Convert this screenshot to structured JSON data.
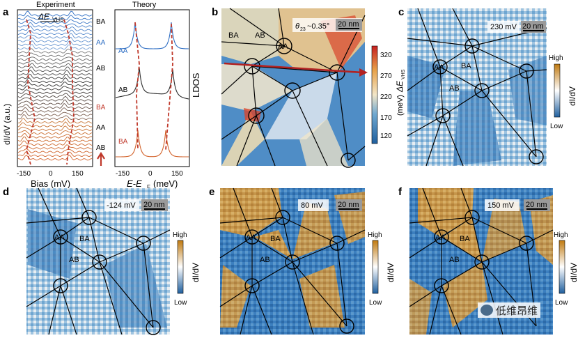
{
  "panels": {
    "a": {
      "label": "a",
      "left_title": "Experiment",
      "right_title": "Theory",
      "delta_label": "ΔE",
      "delta_sub": "VHS",
      "left_ylabel": "dI/dV (a.u.)",
      "left_xlabel": "Bias (mV)",
      "right_ylabel": "LDOS",
      "right_xlabel_main": "E-E",
      "right_xlabel_sub": "F",
      "right_xlabel_unit": "(meV)",
      "left_ticks": [
        "-150",
        "0",
        "150"
      ],
      "right_ticks": [
        "-150",
        "0",
        "150"
      ],
      "stack_labels": [
        "BA",
        "AA",
        "AB",
        "BA",
        "AA",
        "AB"
      ],
      "theory_labels": [
        "AA",
        "AB",
        "BA"
      ]
    },
    "b": {
      "label": "b",
      "theta_text": "θ",
      "theta_sub": "23",
      "theta_value": "~0.35°",
      "scalebar": "20 nm",
      "domains": [
        "BA",
        "AB",
        "AA"
      ],
      "colorbar_ticks": [
        "320",
        "270",
        "220",
        "170",
        "120"
      ],
      "colorbar_title": "ΔE",
      "colorbar_title_sub": "VHS",
      "colorbar_unit": "(meV)"
    },
    "c": {
      "label": "c",
      "bias": "230 mV",
      "scalebar": "20 nm",
      "domains": [
        "AA",
        "BA",
        "AB"
      ],
      "cb_high": "High",
      "cb_low": "Low",
      "cb_title": "dI/dV"
    },
    "d": {
      "label": "d",
      "bias": "-124 mV",
      "scalebar": "20 nm",
      "domains": [
        "AA",
        "BA",
        "AB"
      ],
      "cb_high": "High",
      "cb_low": "Low",
      "cb_title": "dI/dV"
    },
    "e": {
      "label": "e",
      "bias": "80 mV",
      "scalebar": "20 nm",
      "domains": [
        "AA",
        "BA",
        "AB"
      ],
      "cb_high": "High",
      "cb_low": "Low",
      "cb_title": "dI/dV"
    },
    "f": {
      "label": "f",
      "bias": "150 mV",
      "scalebar": "20 nm",
      "domains": [
        "AA",
        "BA",
        "AB"
      ],
      "cb_high": "High",
      "cb_low": "Low",
      "cb_title": "dI/dV"
    }
  },
  "watermark": "低维昂维",
  "colors": {
    "orange": "#d98a2b",
    "blue": "#2a6aa8",
    "red": "#c0392b",
    "trace_blue": "#2f6fc4",
    "trace_orange": "#d2622a"
  }
}
